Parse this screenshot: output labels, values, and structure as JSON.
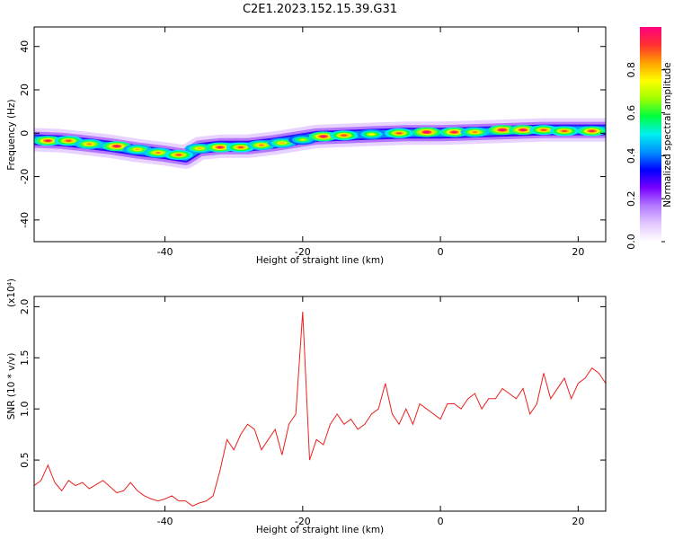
{
  "title": "C2E1.2023.152.15.39.G31",
  "chart_data": [
    {
      "type": "heatmap",
      "xlabel": "Height of straight line (km)",
      "ylabel": "Frequency (Hz)",
      "xlim": [
        -59,
        24
      ],
      "ylim": [
        -50,
        49
      ],
      "xticks": [
        -40,
        -20,
        0,
        20
      ],
      "yticks": [
        -40,
        -20,
        0,
        20,
        40
      ],
      "colorbar": {
        "label": "Normalized spectral amplitude",
        "range": [
          0,
          1
        ],
        "ticks": [
          0.0,
          0.2,
          0.4,
          0.6,
          0.8
        ],
        "colors": [
          "#ffffff",
          "#e3c8ff",
          "#b37bff",
          "#7a00ff",
          "#0000ff",
          "#0090ff",
          "#00f0f0",
          "#00ff40",
          "#a0ff00",
          "#ffff00",
          "#ffa000",
          "#ff3030",
          "#ff0080"
        ]
      },
      "ridge": [
        [
          -59,
          -3
        ],
        [
          -55,
          -3.5
        ],
        [
          -52,
          -4.5
        ],
        [
          -48,
          -6
        ],
        [
          -44,
          -8
        ],
        [
          -40,
          -9.5
        ],
        [
          -37,
          -11
        ],
        [
          -35,
          -7
        ],
        [
          -32,
          -6
        ],
        [
          -28,
          -6
        ],
        [
          -24,
          -4.5
        ],
        [
          -21,
          -3
        ],
        [
          -18,
          -1.5
        ],
        [
          -14,
          -1
        ],
        [
          -10,
          -0.5
        ],
        [
          -5,
          0
        ],
        [
          0,
          0
        ],
        [
          5,
          0.5
        ],
        [
          10,
          1
        ],
        [
          15,
          1.5
        ],
        [
          20,
          1.5
        ],
        [
          24,
          1.5
        ]
      ],
      "blobs": [
        [
          -57,
          -3.5,
          0.95
        ],
        [
          -54,
          -3.5,
          0.9
        ],
        [
          -51,
          -5,
          0.85
        ],
        [
          -47,
          -6,
          0.98
        ],
        [
          -44,
          -7.5,
          0.8
        ],
        [
          -41,
          -9,
          0.85
        ],
        [
          -38,
          -10,
          0.9
        ],
        [
          -35,
          -7,
          0.8
        ],
        [
          -32,
          -6.5,
          0.95
        ],
        [
          -29,
          -6.5,
          0.9
        ],
        [
          -26,
          -5.5,
          0.85
        ],
        [
          -23,
          -4.5,
          0.8
        ],
        [
          -20,
          -3,
          0.7
        ],
        [
          -17,
          -1.5,
          0.98
        ],
        [
          -14,
          -1,
          0.9
        ],
        [
          -10,
          -0.5,
          0.75
        ],
        [
          -6,
          0,
          0.9
        ],
        [
          -2,
          0.5,
          1.0
        ],
        [
          2,
          0.5,
          0.95
        ],
        [
          5,
          0.5,
          0.85
        ],
        [
          9,
          1.5,
          1.0
        ],
        [
          12,
          1.5,
          0.98
        ],
        [
          15,
          1.5,
          0.9
        ],
        [
          18,
          1.0,
          0.9
        ],
        [
          22,
          1.0,
          0.95
        ]
      ]
    },
    {
      "type": "line",
      "xlabel": "Height of straight line (km)",
      "ylabel": "SNR (10 * v/v)",
      "y_multiplier": "(x10⁴)",
      "xlim": [
        -59,
        24
      ],
      "ylim": [
        0,
        2.1
      ],
      "xticks": [
        -40,
        -20,
        0,
        20
      ],
      "yticks": [
        0.5,
        1.0,
        1.5,
        2.0
      ],
      "line_color": "#e8221f",
      "series": [
        {
          "x": [
            -59,
            -58,
            -57,
            -56,
            -55,
            -54,
            -53,
            -52,
            -51,
            -50,
            -49,
            -48,
            -47,
            -46,
            -45,
            -44,
            -43,
            -42,
            -41,
            -40,
            -39,
            -38,
            -37,
            -36,
            -35,
            -34,
            -33,
            -32,
            -31,
            -30,
            -29,
            -28,
            -27,
            -26,
            -25,
            -24,
            -23,
            -22,
            -21,
            -20,
            -19,
            -18,
            -17,
            -16,
            -15,
            -14,
            -13,
            -12,
            -11,
            -10,
            -9,
            -8,
            -7,
            -6,
            -5,
            -4,
            -3,
            -2,
            -1,
            0,
            1,
            2,
            3,
            4,
            5,
            6,
            7,
            8,
            9,
            10,
            11,
            12,
            13,
            14,
            15,
            16,
            17,
            18,
            19,
            20,
            21,
            22,
            23,
            24
          ],
          "y": [
            0.25,
            0.3,
            0.45,
            0.28,
            0.2,
            0.3,
            0.25,
            0.28,
            0.22,
            0.26,
            0.3,
            0.24,
            0.18,
            0.2,
            0.28,
            0.2,
            0.15,
            0.12,
            0.1,
            0.12,
            0.15,
            0.1,
            0.1,
            0.05,
            0.08,
            0.1,
            0.15,
            0.4,
            0.7,
            0.6,
            0.75,
            0.85,
            0.8,
            0.6,
            0.7,
            0.8,
            0.55,
            0.85,
            0.95,
            1.95,
            0.5,
            0.7,
            0.65,
            0.85,
            0.95,
            0.85,
            0.9,
            0.8,
            0.85,
            0.95,
            1.0,
            1.25,
            0.95,
            0.85,
            1.0,
            0.85,
            1.05,
            1.0,
            0.95,
            0.9,
            1.05,
            1.05,
            1.0,
            1.1,
            1.15,
            1.0,
            1.1,
            1.1,
            1.2,
            1.15,
            1.1,
            1.2,
            0.95,
            1.05,
            1.35,
            1.1,
            1.2,
            1.3,
            1.1,
            1.25,
            1.3,
            1.4,
            1.35,
            1.25
          ]
        }
      ]
    }
  ]
}
